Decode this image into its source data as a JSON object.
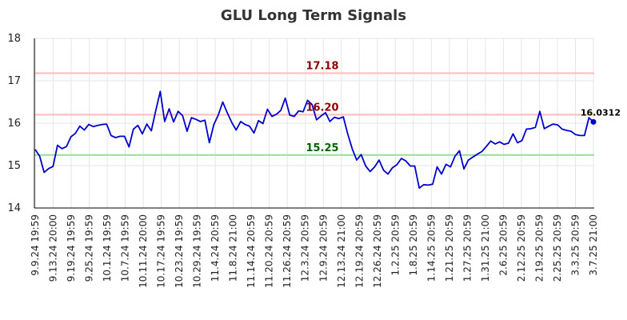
{
  "chart_data": {
    "type": "line",
    "title": "GLU Long Term Signals",
    "xlabel": "",
    "ylabel": "",
    "ylim": [
      14,
      18
    ],
    "yticks": [
      "14",
      "15",
      "16",
      "17",
      "18"
    ],
    "grid": true,
    "x_tick_labels": [
      "9.9.24 19:59",
      "9.13.24 20:00",
      "9.19.24 19:59",
      "9.25.24 19:59",
      "10.1.24 19:59",
      "10.7.24 19:59",
      "10.11.24 20:00",
      "10.17.24 19:59",
      "10.23.24 19:59",
      "10.29.24 19:59",
      "11.4.24 20:59",
      "11.8.24 21:00",
      "11.14.24 20:59",
      "11.20.24 20:59",
      "11.26.24 20:59",
      "12.3.24 20:59",
      "12.9.24 20:59",
      "12.13.24 21:00",
      "12.19.24 20:59",
      "12.26.24 20:59",
      "1.2.25 20:59",
      "1.8.25 20:59",
      "1.14.25 20:59",
      "1.21.25 20:59",
      "1.27.25 20:59",
      "1.31.25 21:00",
      "2.6.25 20:59",
      "2.12.25 20:59",
      "2.19.25 20:59",
      "2.25.25 20:59",
      "3.3.25 20:59",
      "3.7.25 21:00"
    ],
    "reference_lines": [
      {
        "value": 17.18,
        "label": "17.18",
        "color": "#ffbbbb",
        "label_color": "#8b0000"
      },
      {
        "value": 16.2,
        "label": "16.20",
        "color": "#ffbbbb",
        "label_color": "#8b0000"
      },
      {
        "value": 15.25,
        "label": "15.25",
        "color": "#99dd99",
        "label_color": "#006400"
      }
    ],
    "series": [
      {
        "color": "#0000cc",
        "values": [
          15.38,
          15.22,
          14.84,
          14.93,
          14.98,
          15.48,
          15.4,
          15.45,
          15.68,
          15.76,
          15.93,
          15.84,
          15.97,
          15.92,
          15.95,
          15.97,
          15.98,
          15.71,
          15.66,
          15.69,
          15.69,
          15.44,
          15.86,
          15.95,
          15.75,
          15.98,
          15.82,
          16.3,
          16.75,
          16.04,
          16.34,
          16.03,
          16.28,
          16.18,
          15.81,
          16.13,
          16.09,
          16.04,
          16.07,
          15.54,
          15.97,
          16.19,
          16.5,
          16.25,
          16.02,
          15.84,
          16.04,
          15.97,
          15.93,
          15.77,
          16.06,
          15.99,
          16.33,
          16.16,
          16.21,
          16.3,
          16.59,
          16.19,
          16.16,
          16.29,
          16.27,
          16.54,
          16.44,
          16.08,
          16.17,
          16.25,
          16.04,
          16.14,
          16.11,
          16.15,
          15.74,
          15.39,
          15.13,
          15.26,
          14.99,
          14.86,
          14.97,
          15.13,
          14.89,
          14.8,
          14.95,
          15.02,
          15.17,
          15.11,
          14.99,
          14.99,
          14.47,
          14.55,
          14.54,
          14.56,
          14.97,
          14.8,
          15.03,
          14.97,
          15.22,
          15.35,
          14.92,
          15.13,
          15.2,
          15.27,
          15.33,
          15.45,
          15.58,
          15.51,
          15.56,
          15.5,
          15.53,
          15.75,
          15.54,
          15.59,
          15.86,
          15.87,
          15.9,
          16.28,
          15.87,
          15.93,
          15.98,
          15.96,
          15.86,
          15.83,
          15.81,
          15.73,
          15.71,
          15.71,
          16.13,
          16.03
        ]
      }
    ],
    "last_value_label": "16.0312"
  }
}
